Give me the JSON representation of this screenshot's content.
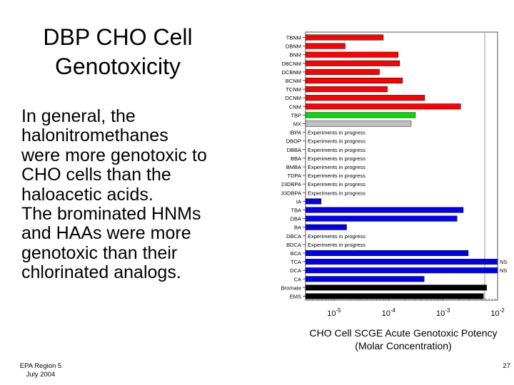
{
  "slide": {
    "title_line1": "DBP CHO Cell",
    "title_line2": "Genotoxicity",
    "body_lines": [
      "In general, the",
      "halonitromethanes",
      "were more genotoxic to",
      "CHO cells than the",
      "haloacetic acids.",
      "The brominated HNMs",
      "and HAAs were more",
      "genotoxic than their",
      "chlorinated analogs."
    ],
    "footer_line1": "EPA Region 5",
    "footer_line2": "July 2004",
    "page_number": "27"
  },
  "chart_data": {
    "type": "bar",
    "orientation": "horizontal",
    "title_line1": "CHO Cell SCGE Acute Genotoxic Potency",
    "title_line2": "(Molar Concentration)",
    "xscale": "log",
    "xlim": [
      3e-06,
      0.01
    ],
    "xticks": [
      {
        "value": 1e-05,
        "base": "10",
        "exp": "-5"
      },
      {
        "value": 0.0001,
        "base": "10",
        "exp": "-4"
      },
      {
        "value": 0.001,
        "base": "10",
        "exp": "-3"
      },
      {
        "value": 0.01,
        "base": "10",
        "exp": "-2"
      }
    ],
    "pending_label": "Experiments in progress",
    "colors": {
      "red": "#ff0000",
      "green": "#00dd00",
      "gray": "#c0c0c0",
      "blue": "#0000ee",
      "black": "#000000"
    },
    "bars": [
      {
        "label": "TBNM",
        "value": 8e-05,
        "color": "red"
      },
      {
        "label": "DBNM",
        "value": 1.6e-05,
        "color": "red"
      },
      {
        "label": "BNM",
        "value": 0.00015,
        "color": "red"
      },
      {
        "label": "DBCNM",
        "value": 0.00016,
        "color": "red"
      },
      {
        "label": "DCBNM",
        "value": 6.8e-05,
        "color": "red"
      },
      {
        "label": "BCNM",
        "value": 0.00018,
        "color": "red"
      },
      {
        "label": "TCNM",
        "value": 9.5e-05,
        "color": "red"
      },
      {
        "label": "DCNM",
        "value": 0.00046,
        "color": "red"
      },
      {
        "label": "CNM",
        "value": 0.0021,
        "color": "red"
      },
      {
        "label": "TBP",
        "value": 0.00031,
        "color": "green"
      },
      {
        "label": "MX",
        "value": 0.00026,
        "color": "gray"
      },
      {
        "label": "IBPA",
        "pending": true
      },
      {
        "label": "DBOP",
        "pending": true
      },
      {
        "label": "DBBA",
        "pending": true
      },
      {
        "label": "BBA",
        "pending": true
      },
      {
        "label": "BMBA",
        "pending": true
      },
      {
        "label": "TDPA",
        "pending": true
      },
      {
        "label": "23DBPA",
        "pending": true
      },
      {
        "label": "33DBPA",
        "pending": true
      },
      {
        "label": "IA",
        "value": 5.8e-06,
        "color": "blue"
      },
      {
        "label": "TBA",
        "value": 0.00235,
        "color": "blue"
      },
      {
        "label": "DBA",
        "value": 0.0018,
        "color": "blue"
      },
      {
        "label": "BA",
        "value": 1.7e-05,
        "color": "blue"
      },
      {
        "label": "DBCA",
        "pending": true
      },
      {
        "label": "BDCA",
        "pending": true
      },
      {
        "label": "BCA",
        "value": 0.0029,
        "color": "blue"
      },
      {
        "label": "TCA",
        "value": 0.01,
        "color": "blue",
        "note": "NS"
      },
      {
        "label": "DCA",
        "value": 0.01,
        "color": "blue",
        "note": "NS"
      },
      {
        "label": "CA",
        "value": 0.00045,
        "color": "blue"
      },
      {
        "label": "Bromate",
        "value": 0.0063,
        "color": "black"
      },
      {
        "label": "EMS",
        "value": 0.0055,
        "color": "black"
      }
    ]
  }
}
